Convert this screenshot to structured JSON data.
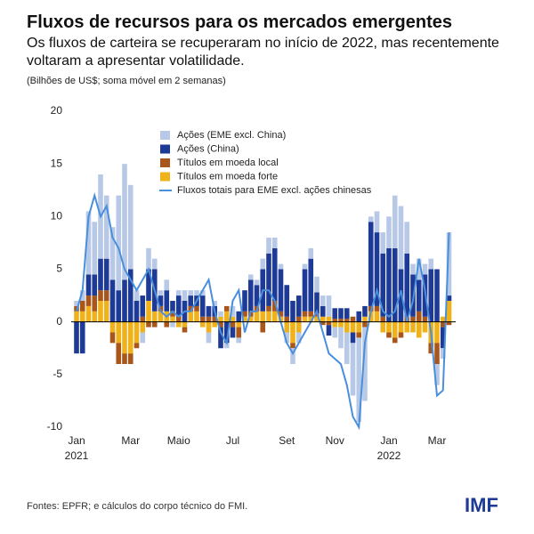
{
  "header": {
    "title": "Fluxos de recursos para os mercados emergentes",
    "subtitle": "Os fluxos de carteira se recuperaram no início de 2022, mas recentemente voltaram a apresentar volatilidade.",
    "units_note": "(Bilhões de US$; soma móvel em 2 semanas)"
  },
  "chart_data": {
    "type": "bar",
    "categories": [
      "Jan",
      null,
      null,
      null,
      null,
      null,
      null,
      null,
      null,
      "Mar",
      null,
      null,
      null,
      null,
      null,
      null,
      null,
      "Maio",
      null,
      null,
      null,
      null,
      null,
      null,
      null,
      null,
      "Jul",
      null,
      null,
      null,
      null,
      null,
      null,
      null,
      null,
      "Set",
      null,
      null,
      null,
      null,
      null,
      null,
      null,
      "Nov",
      null,
      null,
      null,
      null,
      null,
      null,
      null,
      null,
      "Jan",
      null,
      null,
      null,
      null,
      null,
      null,
      null,
      "Mar",
      null,
      null
    ],
    "year_labels": [
      "2021",
      "2022"
    ],
    "series": [
      {
        "name": "Ações (EME excl. China)",
        "color": "#b7c9e6",
        "values": [
          0.5,
          1,
          6,
          5,
          8,
          6,
          5,
          9,
          11,
          8,
          1,
          -1,
          2,
          1,
          0.5,
          1,
          -0.5,
          0.5,
          1,
          0.5,
          0.5,
          0.5,
          -1,
          0.5,
          0.5,
          -0.5,
          1,
          -0.5,
          0,
          0.5,
          0.5,
          1,
          1.5,
          1,
          0.5,
          -1,
          -1.5,
          -1,
          0.5,
          1,
          1.5,
          1,
          2,
          -1,
          -2,
          -3,
          -5,
          -8,
          -7,
          0.5,
          2,
          2,
          3,
          5,
          6,
          3,
          1,
          2,
          1,
          1,
          -2,
          -1,
          6
        ]
      },
      {
        "name": "Ações (China)",
        "color": "#1d3a96",
        "values": [
          -3,
          -3,
          2,
          2,
          3,
          3,
          4,
          3,
          4,
          5,
          2,
          2,
          3,
          4,
          1,
          2,
          1,
          2,
          2,
          1,
          1,
          2,
          1,
          1,
          -2,
          -2,
          -1,
          1,
          2,
          3,
          2,
          4,
          5,
          5,
          4,
          3,
          2,
          2,
          4,
          5,
          2,
          1,
          -1,
          1,
          1,
          1,
          -1,
          1,
          1,
          8,
          7,
          6,
          7,
          7,
          5,
          6,
          4,
          3,
          4,
          5,
          5,
          -2,
          0.5
        ]
      },
      {
        "name": "Títulos em moeda local",
        "color": "#a8561c",
        "values": [
          0.5,
          1,
          1,
          1.5,
          1,
          1,
          -1,
          -2,
          -1,
          -1,
          -0.5,
          0.5,
          -0.5,
          -0.5,
          0.5,
          -0.5,
          0.5,
          0.5,
          -0.5,
          0.5,
          0.5,
          0.5,
          0.5,
          0.5,
          -0.5,
          0.5,
          -0.5,
          -1,
          0.5,
          0.5,
          0.5,
          -1,
          0.5,
          1,
          0.5,
          0.5,
          -0.5,
          0.5,
          0.5,
          0.5,
          0.3,
          -0.3,
          -0.3,
          0.3,
          0.3,
          0.3,
          0.5,
          -0.5,
          -0.5,
          0.5,
          0.5,
          0.5,
          -0.5,
          -0.5,
          -0.5,
          0.5,
          0.5,
          1,
          0.5,
          -1,
          -2,
          -0.5,
          -0.3
        ]
      },
      {
        "name": "Títulos em moeda forte",
        "color": "#f0b21a",
        "values": [
          1,
          1,
          1.5,
          1,
          2,
          2,
          -1,
          -2,
          -3,
          -3,
          -2,
          -1,
          2,
          1,
          1,
          1,
          0.5,
          -0.5,
          -0.5,
          1,
          1,
          -0.5,
          -1,
          -0.5,
          0.5,
          1,
          0.5,
          -0.5,
          0.5,
          0.5,
          1,
          1,
          1,
          1,
          0.5,
          -1,
          -2,
          -1,
          0.5,
          0.5,
          0.5,
          0.5,
          0.5,
          -0.5,
          -0.5,
          -1,
          -1,
          -1,
          0.5,
          1,
          1,
          -1,
          -1,
          -1.5,
          -1,
          -1,
          -1,
          -1.5,
          -1,
          -2,
          -2,
          0.5,
          2
        ]
      },
      {
        "name": "Fluxos totais para EME excl. ações chinesas",
        "color": "#4a8fdc",
        "type": "line",
        "values": [
          1,
          3,
          10,
          12,
          10,
          11,
          8,
          7,
          5,
          4,
          3,
          4,
          5,
          3,
          1,
          0.5,
          1,
          0.5,
          1,
          1,
          2,
          3,
          4,
          1,
          -1,
          -2,
          2,
          3,
          -1,
          1,
          1,
          3,
          3,
          2,
          0,
          -2,
          -3,
          -2,
          -1,
          0,
          1,
          -1,
          -3,
          -3.5,
          -4,
          -6,
          -9,
          -10,
          -2,
          1,
          3,
          1,
          0.5,
          1,
          3,
          0,
          2,
          6,
          3,
          -1,
          -7,
          -6.5,
          8.5
        ]
      }
    ],
    "ylim": [
      -10,
      20
    ],
    "yticks": [
      -10,
      -5,
      0,
      5,
      10,
      15,
      20
    ]
  },
  "footer": {
    "source": "Fontes: EPFR; e cálculos do corpo técnico do FMI.",
    "logo": "IMF"
  }
}
